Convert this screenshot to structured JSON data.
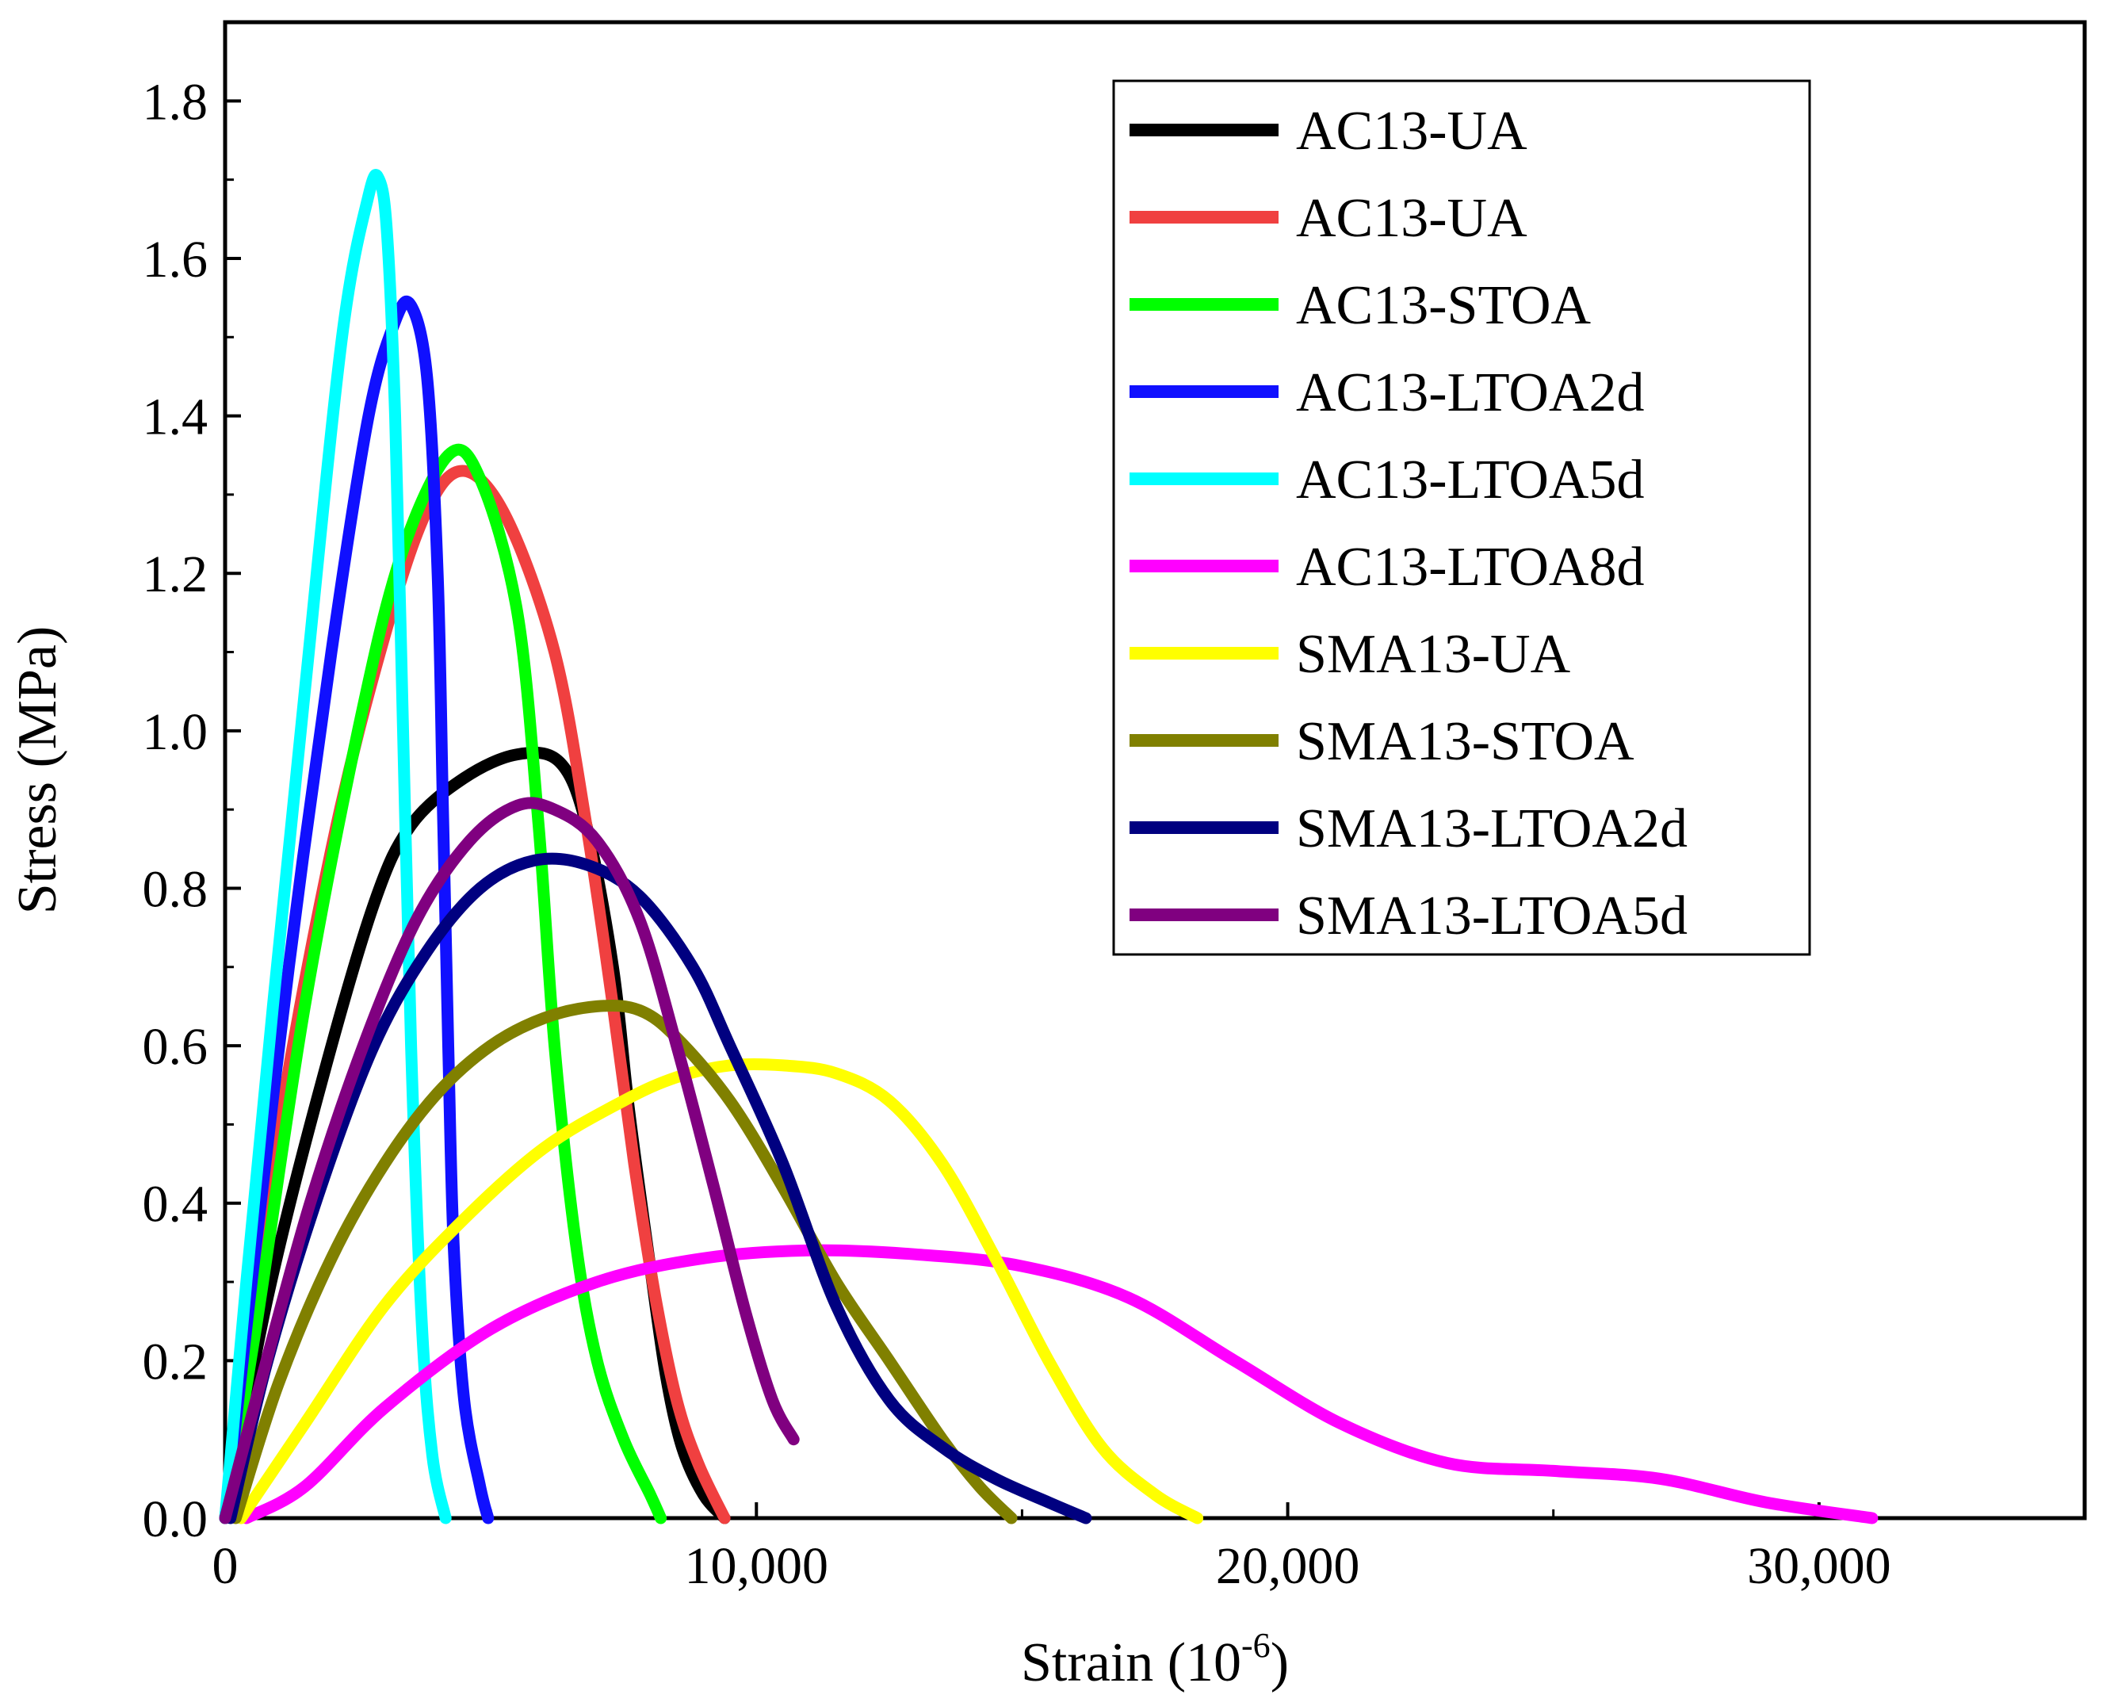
{
  "chart_data": {
    "type": "line",
    "title": "",
    "xlabel": "Strain (10",
    "xlabel_sup": "-6",
    "xlabel_close": ")",
    "ylabel": "Stress (MPa)",
    "xlim": [
      0,
      35000
    ],
    "ylim": [
      0,
      1.9
    ],
    "x_ticks": [
      0,
      10000,
      20000,
      30000
    ],
    "x_tick_labels": [
      "0",
      "10,000",
      "20,000",
      "30,000"
    ],
    "y_ticks": [
      0.0,
      0.2,
      0.4,
      0.6,
      0.8,
      1.0,
      1.2,
      1.4,
      1.6,
      1.8
    ],
    "y_tick_labels": [
      "0.0",
      "0.2",
      "0.4",
      "0.6",
      "0.8",
      "1.0",
      "1.2",
      "1.4",
      "1.6",
      "1.8"
    ],
    "grid": false,
    "legend_position": "top-right",
    "series": [
      {
        "name": "AC13-UA",
        "color": "#000000",
        "x": [
          0,
          800,
          1800,
          2800,
          3500,
          4500,
          5500,
          6300,
          6800,
          7300,
          7600,
          8000,
          8300,
          8600,
          9000,
          9400
        ],
        "y": [
          0,
          0.28,
          0.55,
          0.78,
          0.88,
          0.94,
          0.97,
          0.96,
          0.88,
          0.7,
          0.52,
          0.32,
          0.18,
          0.09,
          0.03,
          0
        ]
      },
      {
        "name": "AC13-UA",
        "color": "#f04040",
        "x": [
          0,
          900,
          2000,
          3000,
          3800,
          4500,
          5300,
          6200,
          6800,
          7300,
          7700,
          8100,
          8500,
          8900,
          9400
        ],
        "y": [
          0,
          0.45,
          0.85,
          1.12,
          1.28,
          1.33,
          1.27,
          1.1,
          0.88,
          0.65,
          0.45,
          0.28,
          0.15,
          0.07,
          0
        ]
      },
      {
        "name": "AC13-STOA",
        "color": "#00ff00",
        "x": [
          0,
          600,
          1500,
          2500,
          3300,
          4200,
          4800,
          5500,
          5900,
          6200,
          6600,
          7000,
          7500,
          8000,
          8200
        ],
        "y": [
          0,
          0.25,
          0.65,
          1.0,
          1.22,
          1.35,
          1.32,
          1.15,
          0.88,
          0.6,
          0.35,
          0.2,
          0.1,
          0.03,
          0
        ]
      },
      {
        "name": "AC13-LTOA2d",
        "color": "#1010ff",
        "x": [
          0,
          500,
          1200,
          2000,
          2700,
          3200,
          3500,
          3800,
          4000,
          4100,
          4200,
          4300,
          4500,
          4800,
          4950
        ],
        "y": [
          0,
          0.3,
          0.7,
          1.1,
          1.4,
          1.52,
          1.54,
          1.45,
          1.2,
          0.9,
          0.6,
          0.35,
          0.15,
          0.04,
          0
        ]
      },
      {
        "name": "AC13-LTOA5d",
        "color": "#00ffff",
        "x": [
          0,
          400,
          900,
          1500,
          2200,
          2700,
          2900,
          3050,
          3200,
          3350,
          3500,
          3700,
          3900,
          4150
        ],
        "y": [
          0,
          0.3,
          0.65,
          1.05,
          1.5,
          1.68,
          1.7,
          1.63,
          1.4,
          1.0,
          0.6,
          0.25,
          0.08,
          0
        ]
      },
      {
        "name": "AC13-LTOA8d",
        "color": "#ff00ff",
        "x": [
          400,
          1500,
          3000,
          5000,
          7000,
          9000,
          11000,
          13000,
          15000,
          17000,
          19000,
          21000,
          23000,
          25000,
          27000,
          29000,
          31000
        ],
        "y": [
          0,
          0.04,
          0.14,
          0.24,
          0.3,
          0.33,
          0.34,
          0.335,
          0.32,
          0.28,
          0.2,
          0.12,
          0.07,
          0.06,
          0.05,
          0.02,
          0
        ]
      },
      {
        "name": "SMA13-UA",
        "color": "#ffff00",
        "x": [
          300,
          1500,
          3000,
          4500,
          6000,
          7500,
          8500,
          9500,
          10500,
          11500,
          12500,
          13500,
          14500,
          15500,
          16500,
          17500,
          18300
        ],
        "y": [
          0,
          0.12,
          0.27,
          0.38,
          0.47,
          0.53,
          0.56,
          0.575,
          0.575,
          0.565,
          0.53,
          0.45,
          0.33,
          0.2,
          0.09,
          0.03,
          0
        ]
      },
      {
        "name": "SMA13-STOA",
        "color": "#808000",
        "x": [
          200,
          1000,
          2000,
          3000,
          4000,
          5000,
          6000,
          7000,
          7800,
          8500,
          9500,
          10500,
          11500,
          12500,
          13500,
          14200,
          14800
        ],
        "y": [
          0,
          0.17,
          0.33,
          0.45,
          0.54,
          0.6,
          0.635,
          0.65,
          0.645,
          0.61,
          0.53,
          0.42,
          0.3,
          0.2,
          0.1,
          0.04,
          0
        ]
      },
      {
        "name": "SMA13-LTOA2d",
        "color": "#000080",
        "x": [
          100,
          800,
          1800,
          2800,
          3800,
          4800,
          5800,
          6800,
          7800,
          8800,
          9500,
          10500,
          11500,
          12500,
          13500,
          14500,
          15500,
          16200
        ],
        "y": [
          0,
          0.2,
          0.42,
          0.6,
          0.72,
          0.8,
          0.835,
          0.83,
          0.79,
          0.7,
          0.6,
          0.45,
          0.27,
          0.15,
          0.09,
          0.05,
          0.02,
          0
        ]
      },
      {
        "name": "SMA13-LTOA5d",
        "color": "#800080",
        "x": [
          0,
          700,
          1600,
          2600,
          3600,
          4600,
          5500,
          6200,
          7000,
          7800,
          8500,
          9200,
          9800,
          10300,
          10700
        ],
        "y": [
          0,
          0.18,
          0.4,
          0.6,
          0.76,
          0.86,
          0.905,
          0.9,
          0.86,
          0.76,
          0.6,
          0.42,
          0.26,
          0.15,
          0.1
        ]
      }
    ]
  }
}
